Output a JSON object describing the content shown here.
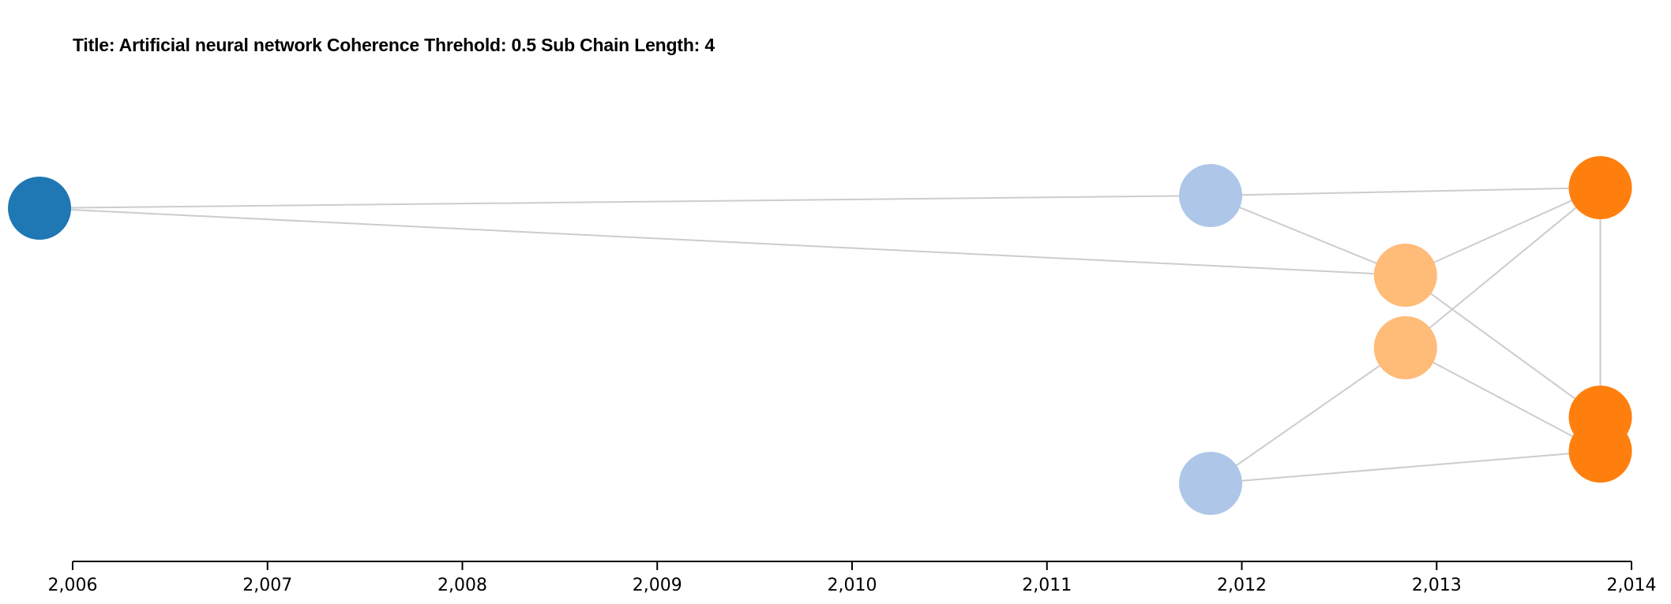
{
  "chart_data": {
    "type": "scatter",
    "title": "Title: Artificial neural network Coherence Threhold: 0.5 Sub Chain Length: 4",
    "xlabel": "",
    "ylabel": "",
    "xlim": [
      2006,
      2014
    ],
    "x_ticks": [
      2006,
      2007,
      2008,
      2009,
      2010,
      2011,
      2012,
      2013,
      2014
    ],
    "x_tick_labels": [
      "2,006",
      "2,007",
      "2,008",
      "2,009",
      "2,010",
      "2,011",
      "2,012",
      "2,013",
      "2,014"
    ],
    "grid": false,
    "legend": "none",
    "nodes": [
      {
        "id": "n1",
        "year": 2005.83,
        "color": "#1f77b4"
      },
      {
        "id": "n2",
        "year": 2011.84,
        "color": "#aec7e8"
      },
      {
        "id": "n3",
        "year": 2011.84,
        "color": "#aec7e8"
      },
      {
        "id": "n4",
        "year": 2012.84,
        "color": "#ffbb78"
      },
      {
        "id": "n5",
        "year": 2012.84,
        "color": "#ffbb78"
      },
      {
        "id": "n6",
        "year": 2013.84,
        "color": "#ff7f0e"
      },
      {
        "id": "n7",
        "year": 2013.84,
        "color": "#ff7f0e"
      },
      {
        "id": "n8",
        "year": 2013.84,
        "color": "#ff7f0e"
      }
    ],
    "edges": [
      [
        "n1",
        "n2"
      ],
      [
        "n1",
        "n4"
      ],
      [
        "n2",
        "n6"
      ],
      [
        "n2",
        "n4"
      ],
      [
        "n4",
        "n6"
      ],
      [
        "n4",
        "n7"
      ],
      [
        "n5",
        "n6"
      ],
      [
        "n5",
        "n3"
      ],
      [
        "n5",
        "n8"
      ],
      [
        "n3",
        "n8"
      ],
      [
        "n6",
        "n7"
      ]
    ],
    "edge_color": "#cccccc"
  }
}
